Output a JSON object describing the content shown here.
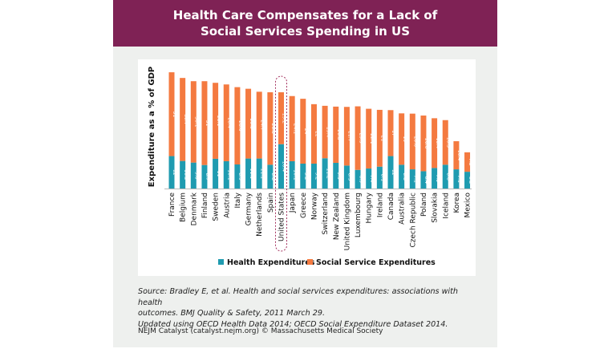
{
  "chart_data": {
    "type": "bar",
    "stacked": true,
    "title": "Health Care Compensates for a Lack of Social Services Spending in US",
    "ylabel": "Expenditure as a % of GDP",
    "xlabel": "",
    "ylim": [
      0,
      45
    ],
    "grid": false,
    "legend_placement": "bottom",
    "highlight": "United States",
    "categories": [
      "France",
      "Belgium",
      "Denmark",
      "Finland",
      "Sweden",
      "Austria",
      "Italy",
      "Germany",
      "Netherlands",
      "Spain",
      "United States",
      "Japan",
      "Greece",
      "Norway",
      "Switzerland",
      "New Zealand",
      "United Kingdom",
      "Luxembourg",
      "Hungary",
      "Ireland",
      "Canada",
      "Australia",
      "Czech Republic",
      "Poland",
      "Slovakia",
      "Iceland",
      "Korea",
      "Mexico"
    ],
    "series": [
      {
        "name": "Health Expenditures",
        "color": "#1f9bb0",
        "values": [
          12,
          10.2,
          9.6,
          8.7,
          11,
          10.1,
          8.9,
          11.1,
          11.1,
          8.8,
          16.4,
          10.1,
          9.2,
          9.2,
          11.2,
          9.5,
          8.5,
          6.9,
          7.4,
          8.1,
          12,
          8.8,
          7.1,
          6.4,
          7.6,
          8.8,
          7.1,
          6.2
        ]
      },
      {
        "name": "Social Service Expenditures",
        "color": "#f47a40",
        "values": [
          31,
          30.7,
          30.1,
          31,
          28.1,
          28.4,
          28.6,
          25.8,
          24.7,
          26.8,
          19.2,
          24.1,
          24,
          22,
          19.4,
          20.8,
          21.7,
          23.5,
          22.1,
          21,
          17,
          19,
          20.6,
          20.6,
          18.4,
          16.5,
          10.4,
          7.2
        ]
      }
    ]
  },
  "header": {
    "title_line1": "Health Care Compensates for a Lack of",
    "title_line2": "Social Services Spending in US"
  },
  "source": {
    "line1": "Source:  Bradley E, et al. Health and social services expenditures: associations with health",
    "line2": "outcomes. BMJ Quality & Safety, 2011 March 29.",
    "line3": "Updated using OECD Health Data 2014; OECD Social Expenditure Dataset 2014."
  },
  "footer": "NEJM Catalyst (catalyst.nejm.org) © Massachusetts Medical Society"
}
